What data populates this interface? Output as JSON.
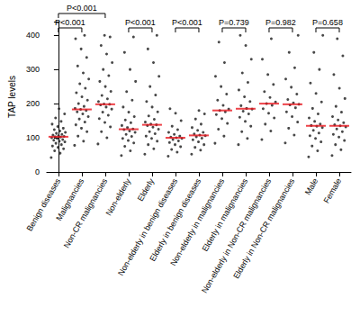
{
  "chart_data": {
    "type": "scatter",
    "y_label": "TAP levels",
    "categories": [
      "Benign diseases",
      "Malignancies",
      "Non-CR malignancies",
      "Non-elderly",
      "Elderly",
      "Non-elderly in benign diseases",
      "Elderly in benign diseases",
      "Non-elderly in malignancies",
      "Elderly in malignancies",
      "Non-elderly in Non-CR malignancies",
      "Elderly in Non-CR malignancies",
      "Male",
      "Female"
    ],
    "ylim": [
      0,
      440
    ],
    "yticks": [
      0,
      100,
      200,
      300,
      400
    ],
    "grid": false,
    "series": [
      {
        "type": "scatter",
        "color": "#1a1a1a",
        "values": [
          [
            42,
            55,
            62,
            68,
            72,
            76,
            80,
            84,
            88,
            90,
            93,
            95,
            98,
            100,
            102,
            103,
            104,
            106,
            108,
            110,
            113,
            116,
            120,
            124,
            128,
            133,
            140,
            148,
            158,
            170,
            185
          ],
          [
            78,
            90,
            105,
            118,
            128,
            138,
            146,
            155,
            162,
            170,
            176,
            180,
            183,
            186,
            192,
            200,
            210,
            220,
            232,
            245,
            258,
            272,
            290,
            310,
            335,
            360,
            390,
            400
          ],
          [
            82,
            100,
            118,
            132,
            145,
            156,
            166,
            175,
            184,
            190,
            196,
            198,
            199,
            206,
            214,
            224,
            236,
            250,
            265,
            282,
            300,
            320,
            345,
            370,
            395,
            400
          ],
          [
            48,
            62,
            75,
            85,
            92,
            98,
            104,
            110,
            116,
            120,
            124,
            126,
            130,
            136,
            144,
            152,
            162,
            175,
            190,
            210,
            235,
            265,
            300,
            350,
            395
          ],
          [
            52,
            68,
            80,
            90,
            98,
            105,
            112,
            118,
            125,
            131,
            136,
            138,
            140,
            146,
            154,
            164,
            176,
            190,
            206,
            225,
            250,
            280,
            320,
            360,
            400
          ],
          [
            46,
            58,
            66,
            74,
            80,
            86,
            91,
            95,
            98,
            100,
            102,
            105,
            110,
            116,
            124,
            134,
            150,
            172,
            185
          ],
          [
            52,
            64,
            72,
            80,
            88,
            94,
            99,
            103,
            106,
            108,
            111,
            116,
            122,
            130,
            140,
            155,
            170,
            180
          ],
          [
            84,
            105,
            125,
            142,
            156,
            168,
            176,
            180,
            184,
            195,
            210,
            228,
            250,
            280,
            320,
            380
          ],
          [
            80,
            98,
            118,
            134,
            148,
            160,
            170,
            178,
            184,
            186,
            194,
            206,
            220,
            240,
            262,
            290,
            330,
            370,
            400
          ],
          [
            95,
            120,
            140,
            158,
            172,
            185,
            195,
            200,
            205,
            218,
            235,
            256,
            285,
            330,
            390
          ],
          [
            85,
            108,
            128,
            146,
            162,
            176,
            188,
            196,
            198,
            202,
            212,
            228,
            248,
            272,
            305,
            350,
            400
          ],
          [
            44,
            62,
            76,
            88,
            98,
            106,
            114,
            122,
            130,
            134,
            136,
            140,
            148,
            158,
            170,
            186,
            205,
            230,
            260,
            300,
            350,
            400
          ],
          [
            48,
            65,
            80,
            92,
            102,
            110,
            118,
            126,
            132,
            135,
            138,
            144,
            152,
            162,
            175,
            192,
            215,
            245,
            285,
            340,
            390
          ]
        ]
      },
      {
        "type": "median",
        "color": "#e8141c",
        "values": [
          103,
          183,
          198,
          125,
          138,
          100,
          107,
          180,
          185,
          200,
          198,
          135,
          135
        ]
      }
    ],
    "annotations": [
      {
        "from": "Benign diseases",
        "to": "Malignancies",
        "text": "P<0.001"
      },
      {
        "from": "Benign diseases",
        "to": "Non-CR malignancies",
        "text": "P<0.001"
      },
      {
        "from": "Non-elderly",
        "to": "Elderly",
        "text": "P<0.001"
      },
      {
        "from": "Non-elderly in benign diseases",
        "to": "Elderly in benign diseases",
        "text": "P<0.001"
      },
      {
        "from": "Non-elderly in malignancies",
        "to": "Elderly in malignancies",
        "text": "P=0.739"
      },
      {
        "from": "Non-elderly in Non-CR malignancies",
        "to": "Elderly in Non-CR malignancies",
        "text": "P=0.982"
      },
      {
        "from": "Male",
        "to": "Female",
        "text": "P=0.658"
      }
    ]
  }
}
